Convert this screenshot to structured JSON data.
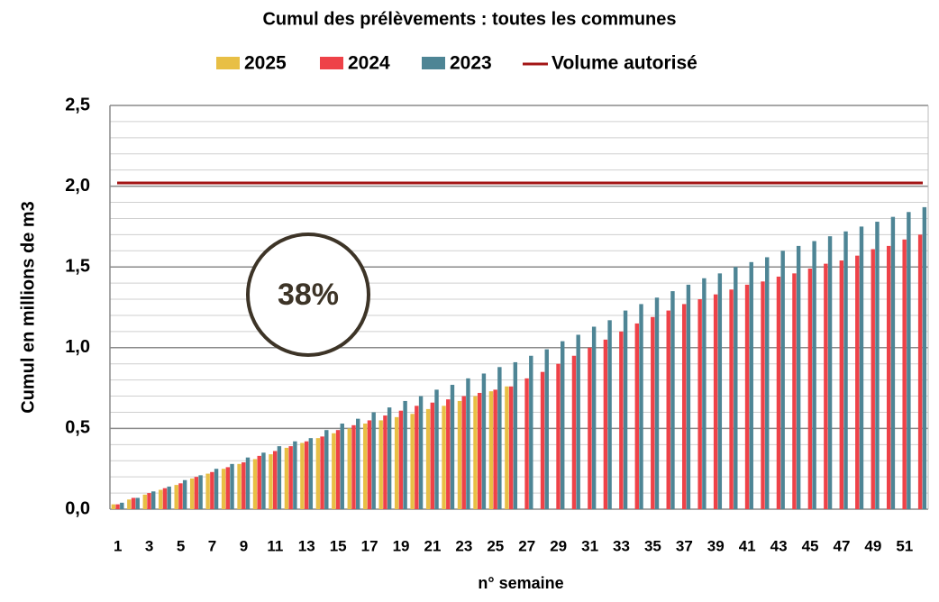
{
  "chart_data": {
    "type": "bar",
    "title": "Cumul des prélèvements : toutes les communes",
    "x_label": "n° semaine",
    "y_label": "Cumul en millions de m3",
    "annotation": "38%",
    "categories": [
      1,
      null,
      3,
      null,
      5,
      null,
      7,
      null,
      9,
      null,
      11,
      null,
      13,
      null,
      15,
      null,
      17,
      null,
      19,
      null,
      21,
      null,
      23,
      null,
      25,
      null,
      27,
      null,
      29,
      null,
      31,
      null,
      33,
      null,
      35,
      null,
      37,
      null,
      39,
      null,
      41,
      null,
      43,
      null,
      45,
      null,
      47,
      null,
      49,
      null,
      51,
      null
    ],
    "series": [
      {
        "name": "2025",
        "color": "#e8bf45",
        "values": [
          0.03,
          0.06,
          0.09,
          0.12,
          0.15,
          0.19,
          0.22,
          0.25,
          0.28,
          0.31,
          0.34,
          0.38,
          0.41,
          0.44,
          0.47,
          0.5,
          0.53,
          0.55,
          0.57,
          0.59,
          0.62,
          0.64,
          0.67,
          0.7,
          0.73,
          0.76,
          null,
          null,
          null,
          null,
          null,
          null,
          null,
          null,
          null,
          null,
          null,
          null,
          null,
          null,
          null,
          null,
          null,
          null,
          null,
          null,
          null,
          null,
          null,
          null,
          null,
          null
        ]
      },
      {
        "name": "2024",
        "color": "#ee4248",
        "values": [
          0.03,
          0.07,
          0.1,
          0.13,
          0.16,
          0.2,
          0.23,
          0.26,
          0.29,
          0.33,
          0.36,
          0.39,
          0.42,
          0.45,
          0.49,
          0.52,
          0.55,
          0.58,
          0.61,
          0.64,
          0.66,
          0.68,
          0.7,
          0.72,
          0.74,
          0.76,
          0.81,
          0.85,
          0.9,
          0.95,
          1.0,
          1.05,
          1.1,
          1.15,
          1.19,
          1.23,
          1.27,
          1.3,
          1.33,
          1.36,
          1.39,
          1.41,
          1.44,
          1.46,
          1.49,
          1.52,
          1.54,
          1.57,
          1.61,
          1.63,
          1.67,
          1.7
        ]
      },
      {
        "name": "2023",
        "color": "#4e8595",
        "values": [
          0.04,
          0.07,
          0.11,
          0.14,
          0.18,
          0.21,
          0.25,
          0.28,
          0.32,
          0.35,
          0.39,
          0.42,
          0.44,
          0.49,
          0.53,
          0.56,
          0.6,
          0.63,
          0.67,
          0.7,
          0.74,
          0.77,
          0.81,
          0.84,
          0.88,
          0.91,
          0.95,
          0.99,
          1.04,
          1.08,
          1.13,
          1.17,
          1.23,
          1.27,
          1.31,
          1.35,
          1.39,
          1.43,
          1.46,
          1.5,
          1.53,
          1.56,
          1.6,
          1.63,
          1.66,
          1.69,
          1.72,
          1.75,
          1.78,
          1.81,
          1.84,
          1.87
        ]
      }
    ],
    "reference_line": {
      "name": "Volume autorisé",
      "value": 2.02,
      "color": "#a31515"
    },
    "ylim": [
      0,
      2.5
    ],
    "yticks": [
      {
        "value": 0,
        "label": "0,0"
      },
      {
        "value": 0.5,
        "label": "0,5"
      },
      {
        "value": 1,
        "label": "1,0"
      },
      {
        "value": 1.5,
        "label": "1,5"
      },
      {
        "value": 2,
        "label": "2,0"
      },
      {
        "value": 2.5,
        "label": "2,5"
      }
    ],
    "yminorticks": [
      0.1,
      0.2,
      0.3,
      0.4,
      0.6,
      0.7,
      0.8,
      0.9,
      1.1,
      1.2,
      1.3,
      1.4,
      1.6,
      1.7,
      1.8,
      1.9,
      2.1,
      2.2,
      2.3,
      2.4
    ],
    "grid": true
  }
}
